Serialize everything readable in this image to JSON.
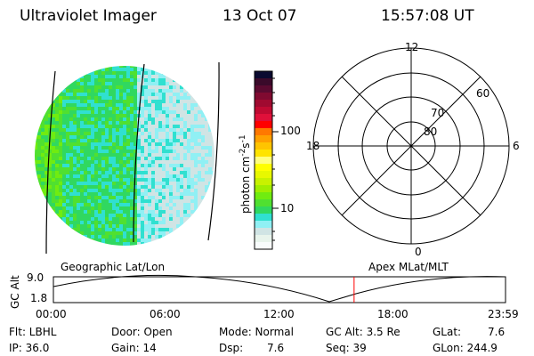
{
  "header": {
    "instrument": "Ultraviolet Imager",
    "date": "13 Oct 07",
    "time": "15:57:08 UT"
  },
  "colorbar": {
    "label": "photon cm",
    "label_sup1": "-2",
    "label_mid": "s",
    "label_sup2": "-1",
    "ticks": [
      "100",
      "10"
    ],
    "colors": [
      "#0a0a30",
      "#3a0a2a",
      "#5a0a30",
      "#800a30",
      "#a00a30",
      "#c00a32",
      "#e0103a",
      "#ff0000",
      "#ff7800",
      "#ffa000",
      "#ffc400",
      "#ffe400",
      "#ffff80",
      "#ffff00",
      "#e8f800",
      "#c8f200",
      "#a0ee00",
      "#70ec10",
      "#50e030",
      "#30d860",
      "#30e0d0",
      "#90f0f4",
      "#d0e4e4",
      "#e8f4ec",
      "#f8fcfc"
    ]
  },
  "polar": {
    "mlt_labels": {
      "top": "12",
      "right": "6",
      "bottom": "0",
      "left": "18"
    },
    "lat_labels": [
      "80",
      "70",
      "60"
    ]
  },
  "altitude_plot": {
    "ylabel": "GC Alt",
    "yticks": [
      "9.0",
      "1.8"
    ],
    "xticks": [
      "00:00",
      "06:00",
      "12:00",
      "18:00",
      "23:59"
    ],
    "left_caption": "Geographic Lat/Lon",
    "right_caption": "Apex MLat/MLT",
    "marker_color": "#ff0000",
    "current_time": "15:57"
  },
  "status": {
    "filter": "Flt: LBHL",
    "ip": "IP: 36.0",
    "door": "Door: Open",
    "gain": "Gain: 14",
    "mode": "Mode: Normal",
    "dsp_label": "Dsp:",
    "dsp_value": "7.6",
    "gc_alt": "GC Alt: 3.5 Re",
    "seq": "Seq: 39",
    "glat_label": "GLat:",
    "glat_value": "7.6",
    "glon": "GLon: 244.9"
  }
}
